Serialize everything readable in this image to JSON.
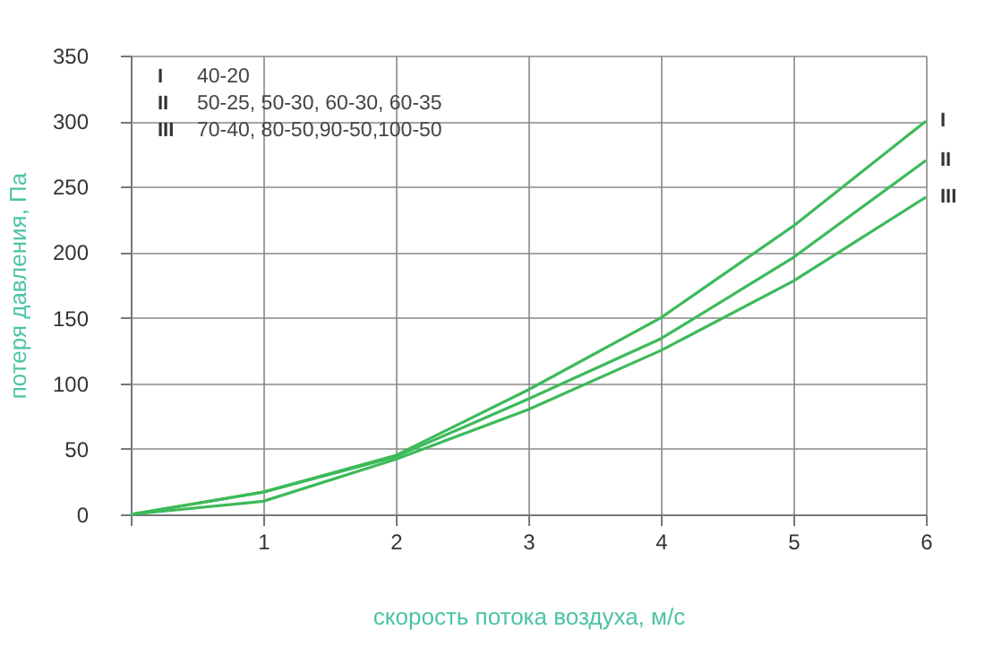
{
  "chart_data": {
    "type": "line",
    "xlabel": "скорость потока воздуха, м/с",
    "ylabel": "потеря давления, Па",
    "x": [
      0,
      1,
      2,
      3,
      4,
      5,
      6
    ],
    "series": [
      {
        "name": "I",
        "color": "#3dba5a",
        "values": [
          0,
          17,
          45,
          95,
          150,
          220,
          300
        ]
      },
      {
        "name": "II",
        "color": "#3dba5a",
        "values": [
          0,
          17,
          44,
          88,
          134,
          196,
          270
        ]
      },
      {
        "name": "III",
        "color": "#3dba5a",
        "values": [
          0,
          10,
          42,
          80,
          125,
          178,
          242
        ]
      }
    ],
    "annotations": [
      "40-20",
      "50-25, 50-30, 60-30, 60-35",
      "70-40, 80-50,90-50,100-50"
    ],
    "xlim": [
      0,
      6
    ],
    "ylim": [
      0,
      350
    ],
    "xticks": [
      {
        "value": 0,
        "label": null
      },
      1,
      2,
      3,
      4,
      5,
      6
    ],
    "yticks": [
      0,
      50,
      100,
      150,
      200,
      250,
      300,
      350
    ],
    "grid": true,
    "legend": false,
    "marker": "none",
    "line_style": "solid"
  }
}
